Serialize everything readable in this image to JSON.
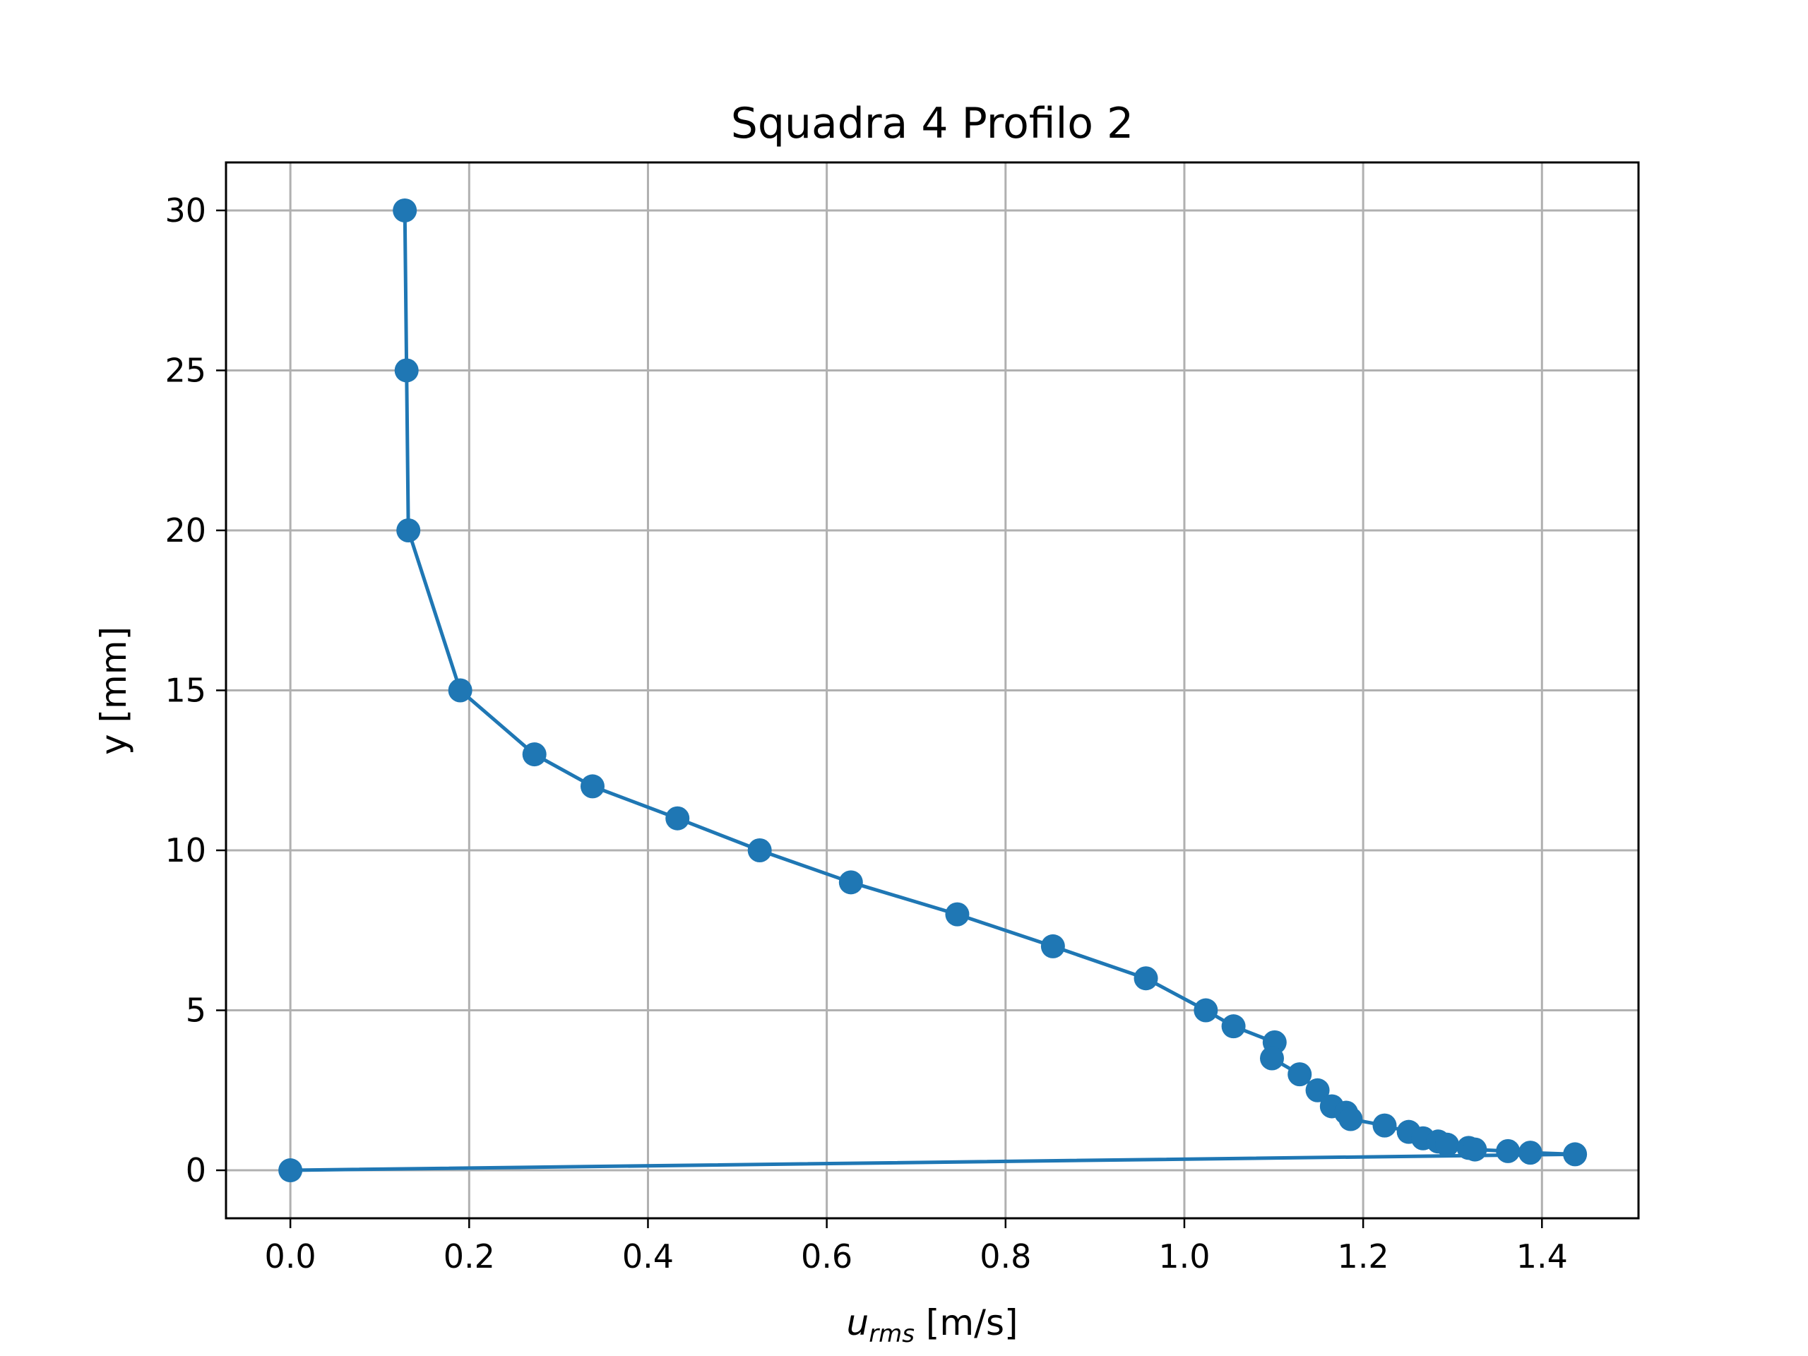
{
  "chart_data": {
    "type": "line",
    "title": "Squadra 4 Profilo 2",
    "xlabel_main": "u",
    "xlabel_sub": "rms",
    "xlabel_unit": " [m/s]",
    "ylabel": "y [mm]",
    "xlim": [
      -0.072,
      1.508
    ],
    "ylim": [
      -1.5,
      31.5
    ],
    "xticks": [
      0.0,
      0.2,
      0.4,
      0.6,
      0.8,
      1.0,
      1.2,
      1.4
    ],
    "xtick_labels": [
      "0.0",
      "0.2",
      "0.4",
      "0.6",
      "0.8",
      "1.0",
      "1.2",
      "1.4"
    ],
    "yticks": [
      0,
      5,
      10,
      15,
      20,
      25,
      30
    ],
    "ytick_labels": [
      "0",
      "5",
      "10",
      "15",
      "20",
      "25",
      "30"
    ],
    "grid": true,
    "series_color": "#1f77b4",
    "x": [
      0.128,
      0.13,
      0.132,
      0.19,
      0.273,
      0.338,
      0.433,
      0.525,
      0.627,
      0.746,
      0.853,
      0.957,
      1.024,
      1.055,
      1.101,
      1.098,
      1.129,
      1.149,
      1.165,
      1.181,
      1.186,
      1.224,
      1.251,
      1.267,
      1.284,
      1.294,
      1.318,
      1.325,
      1.362,
      1.387,
      1.437,
      0.0
    ],
    "y": [
      30,
      25,
      20,
      15,
      13,
      12,
      11,
      10,
      9,
      8,
      7,
      6,
      5,
      4.5,
      4,
      3.5,
      3,
      2.5,
      2,
      1.8,
      1.6,
      1.4,
      1.2,
      1.0,
      0.9,
      0.8,
      0.7,
      0.65,
      0.6,
      0.55,
      0.5,
      0
    ]
  }
}
